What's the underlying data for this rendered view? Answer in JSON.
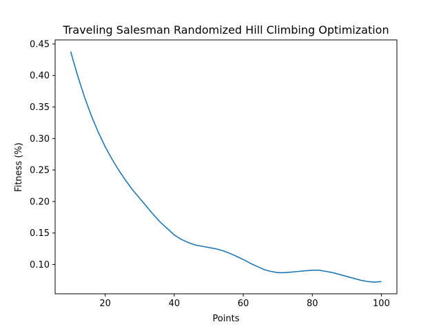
{
  "chart_data": {
    "type": "line",
    "title": "Traveling Salesman Randomized Hill Climbing Optimization",
    "xlabel": "Points",
    "ylabel": "Fitness (%)",
    "xlim": [
      5.5,
      104.5
    ],
    "ylim": [
      0.0535,
      0.4565
    ],
    "xticks": [
      20,
      40,
      60,
      80,
      100
    ],
    "xtick_labels": [
      "20",
      "40",
      "60",
      "80",
      "100"
    ],
    "yticks": [
      0.1,
      0.15,
      0.2,
      0.25,
      0.3,
      0.35,
      0.4,
      0.45
    ],
    "ytick_labels": [
      "0.10",
      "0.15",
      "0.20",
      "0.25",
      "0.30",
      "0.35",
      "0.40",
      "0.45"
    ],
    "grid": false,
    "legend": "none",
    "series": [
      {
        "color": "#1f77b4",
        "x": [
          10,
          12,
          14,
          16,
          18,
          20,
          22,
          24,
          26,
          28,
          30,
          32,
          34,
          36,
          38,
          40,
          42,
          44,
          46,
          48,
          50,
          52,
          54,
          56,
          58,
          60,
          62,
          64,
          66,
          68,
          70,
          72,
          74,
          76,
          78,
          80,
          82,
          84,
          86,
          88,
          90,
          92,
          94,
          96,
          98,
          100
        ],
        "y": [
          0.438,
          0.4,
          0.366,
          0.336,
          0.31,
          0.287,
          0.267,
          0.249,
          0.233,
          0.218,
          0.205,
          0.192,
          0.179,
          0.167,
          0.157,
          0.147,
          0.14,
          0.135,
          0.131,
          0.129,
          0.127,
          0.125,
          0.122,
          0.118,
          0.113,
          0.108,
          0.102,
          0.097,
          0.092,
          0.089,
          0.087,
          0.087,
          0.088,
          0.089,
          0.09,
          0.091,
          0.091,
          0.089,
          0.087,
          0.084,
          0.081,
          0.078,
          0.075,
          0.073,
          0.072,
          0.073
        ]
      }
    ]
  }
}
